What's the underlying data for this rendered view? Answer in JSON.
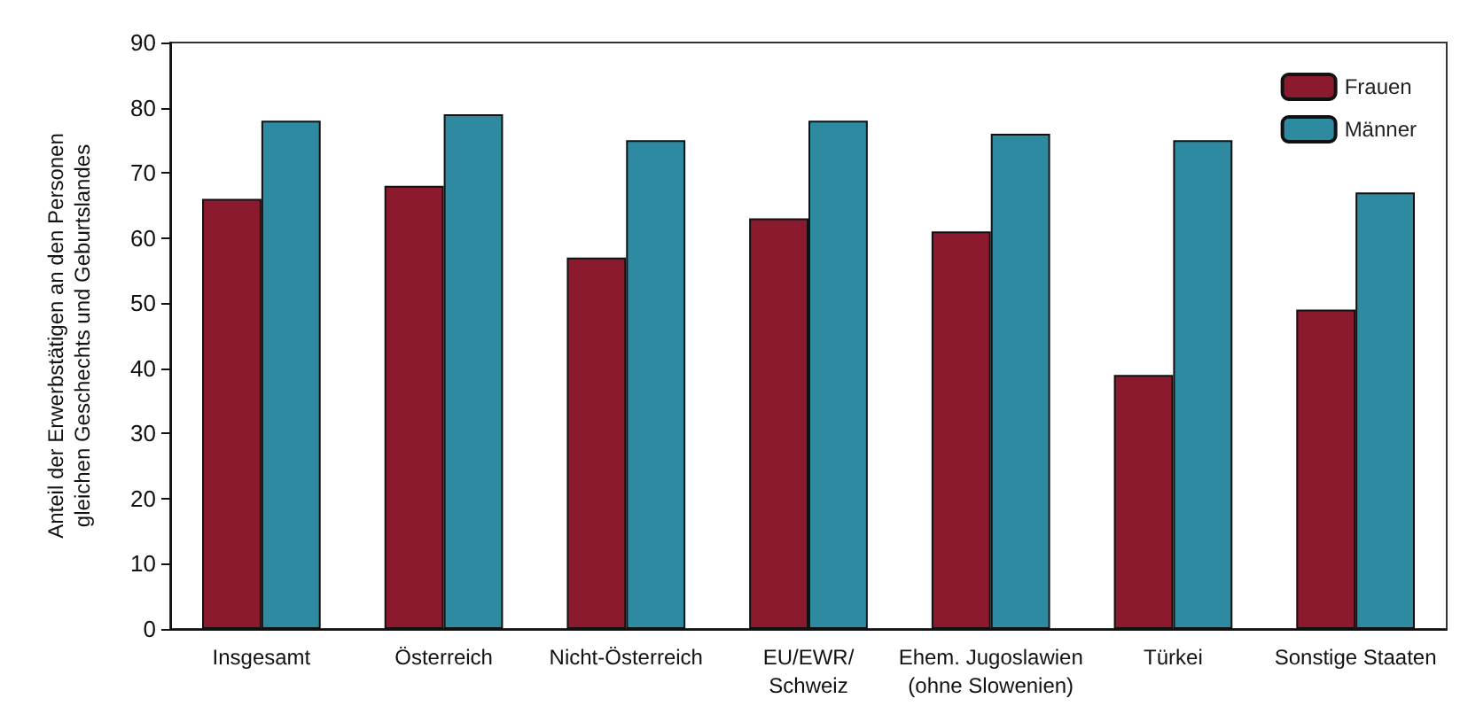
{
  "chart_data": {
    "type": "bar",
    "ylabel": "Anteil der Erwerbstätigen an den Personen\ngleichen Geschechts und Geburtslandes",
    "categories": [
      "Insgesamt",
      "Österreich",
      "Nicht-Österreich",
      "EU/EWR/\nSchweiz",
      "Ehem. Jugoslawien\n(ohne Slowenien)",
      "Türkei",
      "Sonstige Staaten"
    ],
    "series": [
      {
        "name": "Frauen",
        "color": "#8b1a2e",
        "values": [
          66,
          68,
          57,
          63,
          61,
          39,
          49
        ]
      },
      {
        "name": "Männer",
        "color": "#2e8aa0",
        "values": [
          78,
          79,
          75,
          78,
          76,
          75,
          67
        ]
      }
    ],
    "ylim": [
      0,
      90
    ],
    "yticks": [
      0,
      10,
      20,
      30,
      40,
      50,
      60,
      70,
      80,
      90
    ],
    "grid": false,
    "legend": "top right"
  }
}
